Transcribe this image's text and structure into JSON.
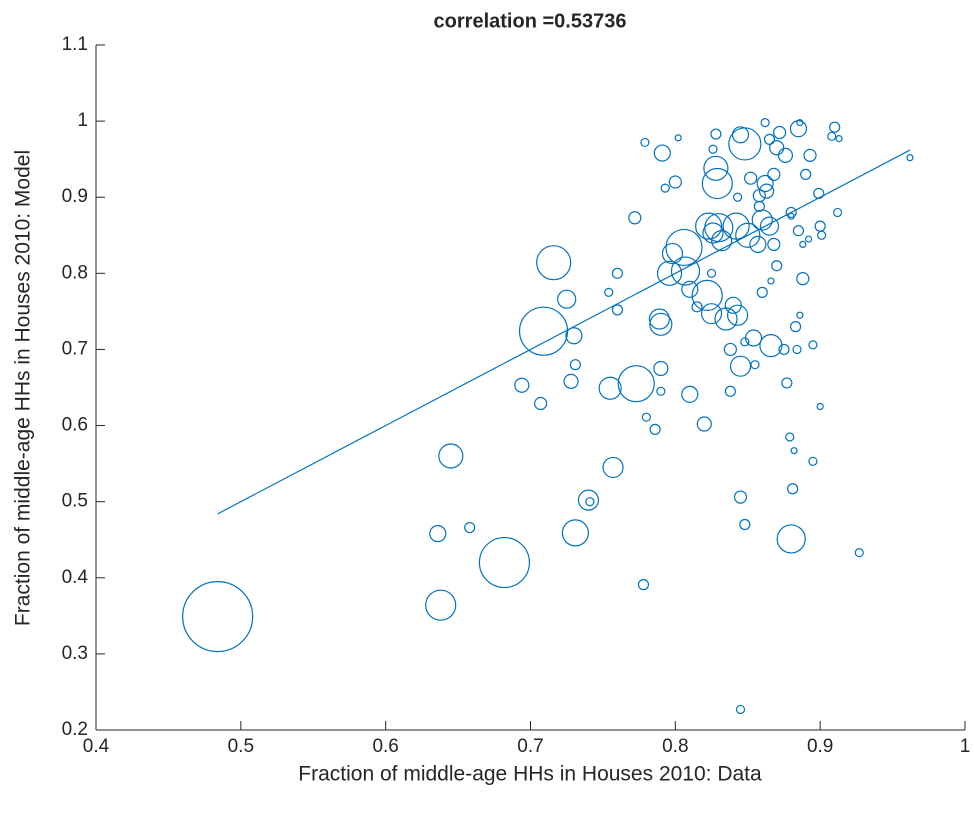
{
  "chart_data": {
    "type": "scatter",
    "title": "correlation =0.53736",
    "xlabel": "Fraction of middle-age HHs in Houses 2010: Data",
    "ylabel": "Fraction of middle-age HHs in Houses 2010: Model",
    "color": "#0072bd",
    "xlim": [
      0.4,
      1
    ],
    "ylim": [
      0.2,
      1.1
    ],
    "xticks": [
      0.4,
      0.5,
      0.6,
      0.7,
      0.8,
      0.9,
      1
    ],
    "yticks": [
      0.2,
      0.3,
      0.4,
      0.5,
      0.6,
      0.7,
      0.8,
      0.9,
      1,
      1.1
    ],
    "x": [
      0.484,
      0.682,
      0.709,
      0.716,
      0.773,
      0.638,
      0.88,
      0.731,
      0.645,
      0.757,
      0.74,
      0.636,
      0.658,
      0.694,
      0.707,
      0.728,
      0.725,
      0.73,
      0.731,
      0.755,
      0.741,
      0.778,
      0.754,
      0.76,
      0.76,
      0.772,
      0.779,
      0.78,
      0.786,
      0.789,
      0.79,
      0.79,
      0.79,
      0.791,
      0.793,
      0.796,
      0.798,
      0.802,
      0.8,
      0.806,
      0.807,
      0.81,
      0.81,
      0.815,
      0.82,
      0.822,
      0.825,
      0.823,
      0.826,
      0.828,
      0.829,
      0.83,
      0.832,
      0.835,
      0.838,
      0.838,
      0.84,
      0.842,
      0.843,
      0.845,
      0.845,
      0.845,
      0.848,
      0.848,
      0.848,
      0.845,
      0.85,
      0.852,
      0.854,
      0.855,
      0.857,
      0.858,
      0.86,
      0.862,
      0.862,
      0.863,
      0.865,
      0.865,
      0.866,
      0.868,
      0.868,
      0.87,
      0.872,
      0.875,
      0.876,
      0.877,
      0.879,
      0.88,
      0.881,
      0.882,
      0.883,
      0.884,
      0.885,
      0.885,
      0.886,
      0.888,
      0.888,
      0.89,
      0.893,
      0.895,
      0.895,
      0.899,
      0.9,
      0.9,
      0.901,
      0.908,
      0.91,
      0.912,
      0.913,
      0.927,
      0.962,
      0.886,
      0.892,
      0.828,
      0.826,
      0.825,
      0.843,
      0.866,
      0.87,
      0.86,
      0.88,
      0.858
    ],
    "y": [
      0.349,
      0.42,
      0.724,
      0.814,
      0.655,
      0.364,
      0.451,
      0.459,
      0.56,
      0.545,
      0.502,
      0.458,
      0.466,
      0.653,
      0.629,
      0.658,
      0.766,
      0.718,
      0.68,
      0.649,
      0.5,
      0.391,
      0.775,
      0.8,
      0.752,
      0.873,
      0.972,
      0.611,
      0.595,
      0.74,
      0.733,
      0.675,
      0.645,
      0.958,
      0.912,
      0.8,
      0.826,
      0.978,
      0.92,
      0.834,
      0.803,
      0.779,
      0.641,
      0.756,
      0.602,
      0.771,
      0.747,
      0.862,
      0.853,
      0.938,
      0.918,
      0.86,
      0.843,
      0.74,
      0.645,
      0.7,
      0.758,
      0.862,
      0.745,
      0.678,
      0.506,
      0.982,
      0.97,
      0.47,
      0.71,
      0.227,
      0.85,
      0.925,
      0.715,
      0.68,
      0.838,
      0.902,
      0.87,
      0.998,
      0.918,
      0.908,
      0.976,
      0.862,
      0.705,
      0.838,
      0.93,
      0.965,
      0.985,
      0.7,
      0.955,
      0.656,
      0.585,
      0.88,
      0.517,
      0.567,
      0.73,
      0.7,
      0.856,
      0.99,
      0.998,
      0.793,
      0.838,
      0.93,
      0.955,
      0.706,
      0.553,
      0.905,
      0.862,
      0.625,
      0.85,
      0.98,
      0.992,
      0.88,
      0.977,
      0.433,
      0.952,
      0.745,
      0.845,
      0.983,
      0.963,
      0.8,
      0.9,
      0.79,
      0.81,
      0.775,
      0.875,
      0.888
    ],
    "sizes": [
      35,
      25,
      24,
      17,
      18,
      15,
      14,
      13,
      12,
      10,
      10,
      8,
      5,
      7,
      6,
      7,
      9,
      8,
      5,
      11,
      4,
      5,
      4,
      5,
      5,
      6,
      4,
      4,
      5,
      10,
      11,
      7,
      4,
      8,
      4,
      12,
      10,
      3,
      6,
      18,
      14,
      8,
      8,
      5,
      7,
      15,
      10,
      13,
      10,
      12,
      15,
      14,
      10,
      11,
      5,
      6,
      8,
      13,
      10,
      10,
      6,
      8,
      16,
      5,
      4,
      4,
      12,
      6,
      8,
      4,
      8,
      6,
      10,
      4,
      8,
      7,
      5,
      9,
      11,
      6,
      6,
      7,
      6,
      5,
      7,
      5,
      4,
      5,
      5,
      3,
      5,
      4,
      5,
      8,
      3,
      6,
      3,
      5,
      6,
      4,
      4,
      5,
      5,
      3,
      4,
      4,
      5,
      4,
      3,
      4,
      3,
      3,
      3,
      5,
      4,
      4,
      4,
      3,
      5,
      5,
      3,
      5
    ],
    "fit": {
      "x": [
        0.484,
        0.962
      ],
      "y": [
        0.484,
        0.962
      ]
    }
  }
}
